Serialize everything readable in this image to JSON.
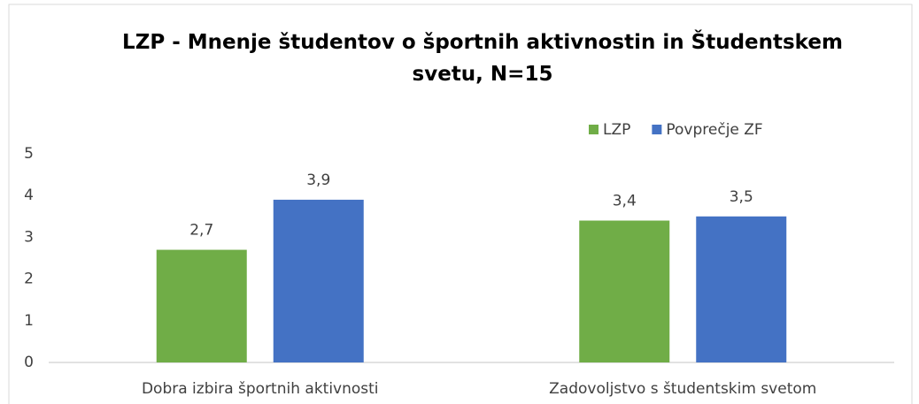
{
  "chart_data": {
    "type": "bar",
    "title": "LZP - Mnenje študentov o športnih aktivnostin in Študentskem svetu, N=15",
    "categories": [
      "Dobra izbira športnih aktivnosti",
      "Zadovoljstvo s študentskim svetom"
    ],
    "series": [
      {
        "name": "LZP",
        "color": "#70ad47",
        "values": [
          2.7,
          3.4
        ],
        "value_labels": [
          "2,7",
          "3,4"
        ]
      },
      {
        "name": "Povprečje ZF",
        "color": "#4472c4",
        "values": [
          3.9,
          3.5
        ],
        "value_labels": [
          "3,9",
          "3,5"
        ]
      }
    ],
    "ylim": [
      0,
      5
    ],
    "yticks": [
      0,
      1,
      2,
      3,
      4,
      5
    ],
    "grid": false,
    "legend": "top-right"
  }
}
